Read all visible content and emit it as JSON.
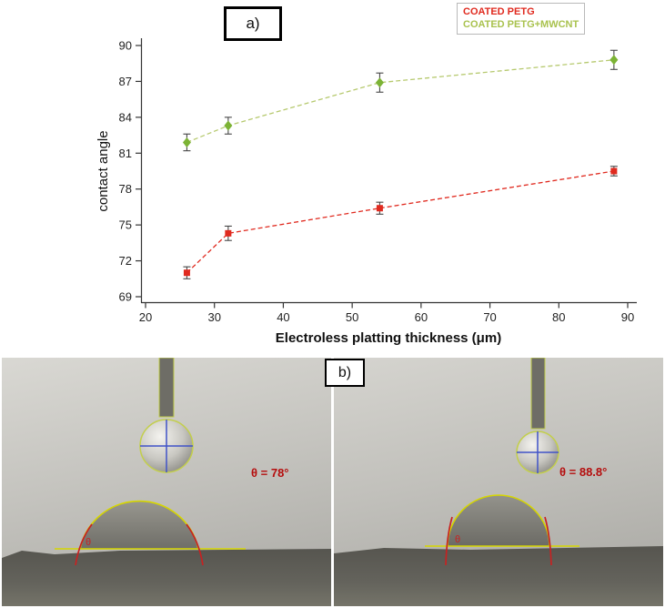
{
  "figure": {
    "panel_a_label": "a)",
    "panel_b_label": "b)"
  },
  "chart_data": {
    "type": "line",
    "title": "",
    "xlabel": "Electroless platting thickness (μm)",
    "ylabel": "contact angle",
    "xlim": [
      20,
      90
    ],
    "ylim": [
      69,
      90
    ],
    "x_ticks": [
      20,
      30,
      40,
      50,
      60,
      70,
      80,
      90
    ],
    "y_ticks": [
      69,
      72,
      75,
      78,
      81,
      84,
      87,
      90
    ],
    "grid": false,
    "legend_position": "top-right",
    "series": [
      {
        "name": "COATED PETG",
        "color": "#e02a1f",
        "line_color": "#e02a1f",
        "legend_color": "#e02a1f",
        "marker": "square",
        "line_style": "dashed",
        "x": [
          26,
          32,
          54,
          88
        ],
        "y": [
          71.0,
          74.3,
          76.4,
          79.5
        ],
        "yerr": [
          0.5,
          0.6,
          0.5,
          0.4
        ]
      },
      {
        "name": "COATED PETG+MWCNT",
        "color": "#7cb335",
        "line_color": "#b6c96e",
        "legend_color": "#a9c24e",
        "marker": "diamond",
        "line_style": "dashed",
        "x": [
          26,
          32,
          54,
          88
        ],
        "y": [
          81.9,
          83.3,
          86.9,
          88.8
        ],
        "yerr": [
          0.7,
          0.7,
          0.8,
          0.8
        ]
      }
    ]
  },
  "photos": [
    {
      "theta_symbol": "θ",
      "angle_label": "θ = 78°"
    },
    {
      "theta_symbol": "θ",
      "angle_label": "θ = 88.8°"
    }
  ]
}
